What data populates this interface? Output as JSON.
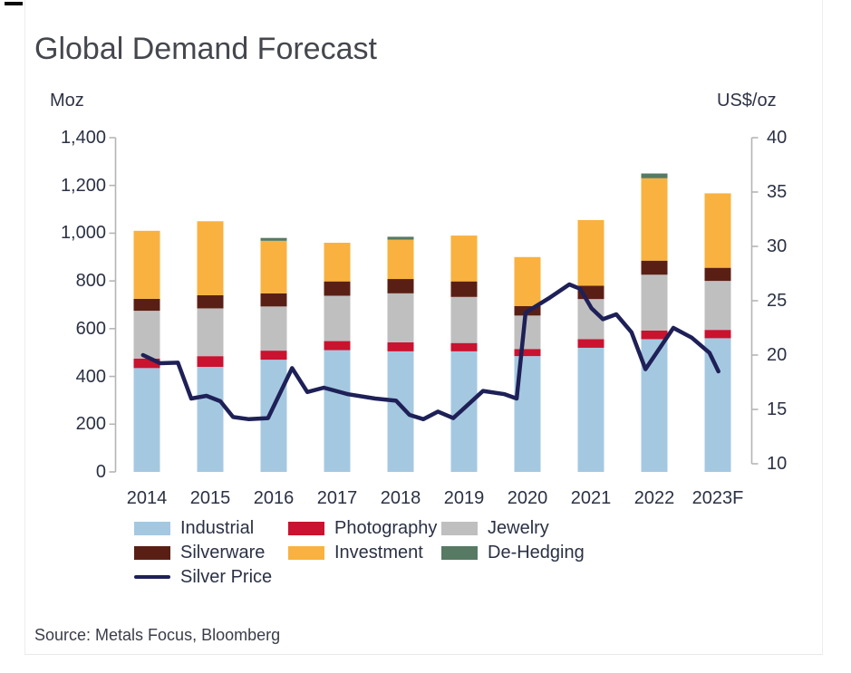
{
  "header": {
    "title": "Global Demand Forecast"
  },
  "axes": {
    "left": {
      "unit": "Moz",
      "tick_values": [
        0,
        200,
        400,
        600,
        800,
        1000,
        1200,
        1400
      ],
      "tick_labels": [
        "0",
        "200",
        "400",
        "600",
        "800",
        "1,000",
        "1,200",
        "1,400"
      ]
    },
    "right": {
      "unit": "US$/oz",
      "tick_values": [
        10,
        15,
        20,
        25,
        30,
        35,
        40
      ],
      "tick_labels": [
        "10",
        "15",
        "20",
        "25",
        "30",
        "35",
        "40"
      ]
    }
  },
  "colors": {
    "industrial": "#a5c8e1",
    "photography": "#c9132f",
    "jewelry": "#bfbfbf",
    "silverware": "#5a1f14",
    "investment": "#f9b23f",
    "dehedging": "#567a64",
    "price_line": "#1e2057",
    "axis_line": "#b5b5b5",
    "text": "#2b3144",
    "frame": "#ececec",
    "background": "#ffffff"
  },
  "legend": {
    "items": [
      {
        "label": "Industrial",
        "color": "#a5c8e1",
        "swatch": "box",
        "row": 0,
        "col": 0
      },
      {
        "label": "Photography",
        "color": "#c9132f",
        "swatch": "box",
        "row": 0,
        "col": 1
      },
      {
        "label": "Jewelry",
        "color": "#bfbfbf",
        "swatch": "box",
        "row": 0,
        "col": 2
      },
      {
        "label": "Silverware",
        "color": "#5a1f14",
        "swatch": "box",
        "row": 1,
        "col": 0
      },
      {
        "label": "Investment",
        "color": "#f9b23f",
        "swatch": "box",
        "row": 1,
        "col": 1
      },
      {
        "label": "De-Hedging",
        "color": "#567a64",
        "swatch": "box",
        "row": 1,
        "col": 2
      },
      {
        "label": "Silver Price",
        "color": "#1e2057",
        "swatch": "line",
        "row": 2,
        "col": 0
      }
    ]
  },
  "source": {
    "text": "Source: Metals Focus, Bloomberg"
  },
  "chart_data": {
    "type": "bar",
    "stacked": true,
    "title": "Global Demand Forecast",
    "categories": [
      "2014",
      "2015",
      "2016",
      "2017",
      "2018",
      "2019",
      "2020",
      "2021",
      "2022",
      "2023F"
    ],
    "ylabel_left": "Moz",
    "ylim_left": [
      0,
      1400
    ],
    "left_ticks": [
      0,
      200,
      400,
      600,
      800,
      1000,
      1200,
      1400
    ],
    "series": [
      {
        "name": "Industrial",
        "color": "#a5c8e1",
        "values": [
          435,
          440,
          470,
          510,
          505,
          505,
          485,
          520,
          556,
          560
        ]
      },
      {
        "name": "Photography",
        "color": "#c9132f",
        "values": [
          40,
          45,
          38,
          38,
          38,
          35,
          30,
          36,
          36,
          35
        ]
      },
      {
        "name": "Jewelry",
        "color": "#bfbfbf",
        "values": [
          200,
          200,
          185,
          190,
          205,
          193,
          140,
          168,
          234,
          205
        ]
      },
      {
        "name": "Silverware",
        "color": "#5a1f14",
        "values": [
          50,
          55,
          55,
          60,
          60,
          65,
          40,
          56,
          59,
          55
        ]
      },
      {
        "name": "Investment",
        "color": "#f9b23f",
        "values": [
          285,
          310,
          220,
          162,
          165,
          192,
          205,
          275,
          345,
          312
        ]
      },
      {
        "name": "De-Hedging",
        "color": "#567a64",
        "values": [
          0,
          0,
          12,
          0,
          12,
          0,
          0,
          0,
          20,
          0
        ]
      }
    ],
    "totals": [
      1010,
      1050,
      980,
      960,
      985,
      990,
      900,
      1055,
      1250,
      1167
    ],
    "overlay_line": {
      "name": "Silver Price",
      "axis": "right",
      "unit": "US$/oz",
      "color": "#1e2057",
      "ylim_right": [
        10,
        40
      ],
      "right_ticks": [
        10,
        15,
        20,
        25,
        30,
        35,
        40
      ],
      "points": [
        [
          2013.94,
          20.0
        ],
        [
          2014.21,
          19.25
        ],
        [
          2014.49,
          19.3
        ],
        [
          2014.7,
          16.0
        ],
        [
          2014.94,
          16.25
        ],
        [
          2015.16,
          15.75
        ],
        [
          2015.36,
          14.3
        ],
        [
          2015.61,
          14.1
        ],
        [
          2015.91,
          14.2
        ],
        [
          2016.29,
          18.8
        ],
        [
          2016.53,
          16.6
        ],
        [
          2016.79,
          17.0
        ],
        [
          2017.17,
          16.4
        ],
        [
          2017.6,
          16.0
        ],
        [
          2017.93,
          15.8
        ],
        [
          2018.14,
          14.5
        ],
        [
          2018.36,
          14.1
        ],
        [
          2018.59,
          14.8
        ],
        [
          2018.83,
          14.2
        ],
        [
          2019.3,
          16.7
        ],
        [
          2019.64,
          16.4
        ],
        [
          2019.83,
          16.0
        ],
        [
          2019.97,
          23.9
        ],
        [
          2020.33,
          25.2
        ],
        [
          2020.66,
          26.5
        ],
        [
          2020.83,
          26.1
        ],
        [
          2021.01,
          24.3
        ],
        [
          2021.19,
          23.3
        ],
        [
          2021.4,
          23.75
        ],
        [
          2021.64,
          22.1
        ],
        [
          2021.86,
          18.7
        ],
        [
          2022.3,
          22.5
        ],
        [
          2022.59,
          21.6
        ],
        [
          2022.87,
          20.2
        ],
        [
          2023.01,
          18.5
        ]
      ]
    },
    "grid": false,
    "legend_position": "bottom"
  }
}
